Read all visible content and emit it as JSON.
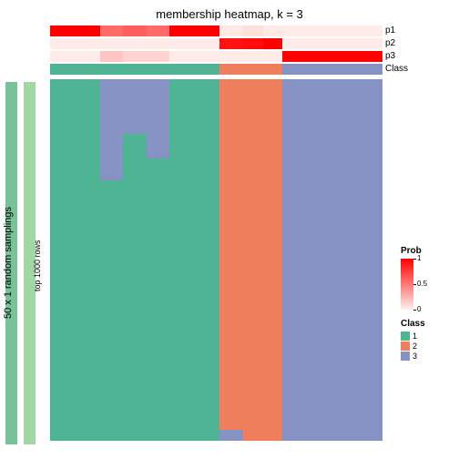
{
  "title": "membership heatmap, k = 3",
  "colors": {
    "bg": "#ffffff",
    "class1": "#4fb494",
    "class2": "#ef7f5c",
    "class3": "#8691c4",
    "sidebar_outer": "#77c298",
    "sidebar_inner": "#a0d7a5",
    "prob_low": "#fff0ec",
    "prob_high": "#ff0000"
  },
  "column_widths_pct": [
    15,
    7,
    7,
    7,
    15,
    7,
    6,
    6,
    15,
    7,
    8
  ],
  "annotation_rows": [
    {
      "label": "p1",
      "values": [
        1.0,
        0.55,
        0.6,
        0.55,
        1.0,
        0.03,
        0.07,
        0.03,
        0.02,
        0.02,
        0.02
      ]
    },
    {
      "label": "p2",
      "values": [
        0.02,
        0.02,
        0.02,
        0.02,
        0.02,
        0.92,
        0.95,
        1.0,
        0.02,
        0.02,
        0.02
      ]
    },
    {
      "label": "p3",
      "values": [
        0.02,
        0.18,
        0.12,
        0.12,
        0.02,
        0.02,
        0.02,
        0.02,
        1.0,
        1.0,
        1.0
      ]
    }
  ],
  "class_row": {
    "label": "Class",
    "classes": [
      1,
      1,
      1,
      1,
      1,
      2,
      2,
      2,
      3,
      3,
      3
    ]
  },
  "heat_columns": [
    {
      "class": 1,
      "segments": [
        {
          "c": 1,
          "h": 100
        }
      ]
    },
    {
      "class": 1,
      "segments": [
        {
          "c": 3,
          "h": 28
        },
        {
          "c": 1,
          "h": 72
        }
      ]
    },
    {
      "class": 1,
      "segments": [
        {
          "c": 3,
          "h": 15
        },
        {
          "c": 1,
          "h": 85
        }
      ]
    },
    {
      "class": 1,
      "segments": [
        {
          "c": 3,
          "h": 22
        },
        {
          "c": 1,
          "h": 78
        }
      ]
    },
    {
      "class": 1,
      "segments": [
        {
          "c": 1,
          "h": 100
        }
      ]
    },
    {
      "class": 2,
      "segments": [
        {
          "c": 2,
          "h": 97
        },
        {
          "c": 3,
          "h": 3
        }
      ]
    },
    {
      "class": 2,
      "segments": [
        {
          "c": 2,
          "h": 100
        }
      ]
    },
    {
      "class": 2,
      "segments": [
        {
          "c": 2,
          "h": 100
        }
      ]
    },
    {
      "class": 3,
      "segments": [
        {
          "c": 3,
          "h": 100
        }
      ]
    },
    {
      "class": 3,
      "segments": [
        {
          "c": 3,
          "h": 100
        }
      ]
    },
    {
      "class": 3,
      "segments": [
        {
          "c": 3,
          "h": 100
        }
      ]
    }
  ],
  "side_labels": {
    "outer": "50 x 1 random samplings",
    "inner": "top 1000 rows"
  },
  "legend_prob": {
    "title": "Prob",
    "ticks": [
      {
        "pos_pct": 0,
        "label": "1"
      },
      {
        "pos_pct": 50,
        "label": "0.5"
      },
      {
        "pos_pct": 100,
        "label": "0"
      }
    ]
  },
  "legend_class": {
    "title": "Class",
    "items": [
      {
        "label": "1",
        "class": 1
      },
      {
        "label": "2",
        "class": 2
      },
      {
        "label": "3",
        "class": 3
      }
    ]
  }
}
